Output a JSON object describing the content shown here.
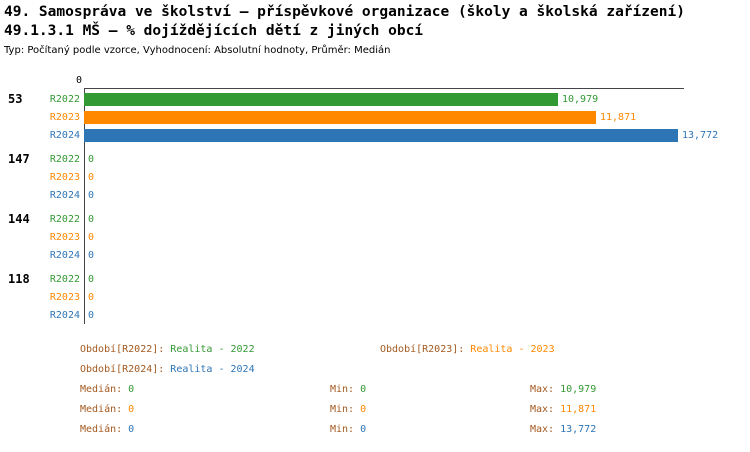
{
  "header": {
    "title_line1": "49. Samospráva ve školství – příspěvkové organizace (školy a školská zařízení)",
    "title_line2": "49.1.3.1 MŠ – % dojíždějících dětí z jiných obcí",
    "meta": "Typ: Počítaný podle vzorce, Vyhodnocení: Absolutní hodnoty, Průměr: Medián"
  },
  "chart_data": {
    "type": "bar",
    "orientation": "horizontal",
    "title": "49.1.3.1 MŠ – % dojíždějících dětí z jiných obcí",
    "axis": {
      "tick_zero": "0",
      "xmax": 13.772
    },
    "colors": {
      "R2022": "#339933",
      "R2023": "#FF8800",
      "R2024": "#2E75B6",
      "label": "#A3591F",
      "axis": "#444444"
    },
    "categories": [
      "53",
      "147",
      "144",
      "118"
    ],
    "series_order": [
      "R2022",
      "R2023",
      "R2024"
    ],
    "groups": [
      {
        "category": "53",
        "bars": [
          {
            "series": "R2022",
            "value": 10.979,
            "label": "10,979"
          },
          {
            "series": "R2023",
            "value": 11.871,
            "label": "11,871"
          },
          {
            "series": "R2024",
            "value": 13.772,
            "label": "13,772"
          }
        ]
      },
      {
        "category": "147",
        "bars": [
          {
            "series": "R2022",
            "value": 0,
            "label": "0"
          },
          {
            "series": "R2023",
            "value": 0,
            "label": "0"
          },
          {
            "series": "R2024",
            "value": 0,
            "label": "0"
          }
        ]
      },
      {
        "category": "144",
        "bars": [
          {
            "series": "R2022",
            "value": 0,
            "label": "0"
          },
          {
            "series": "R2023",
            "value": 0,
            "label": "0"
          },
          {
            "series": "R2024",
            "value": 0,
            "label": "0"
          }
        ]
      },
      {
        "category": "118",
        "bars": [
          {
            "series": "R2022",
            "value": 0,
            "label": "0"
          },
          {
            "series": "R2023",
            "value": 0,
            "label": "0"
          },
          {
            "series": "R2024",
            "value": 0,
            "label": "0"
          }
        ]
      }
    ]
  },
  "legend": {
    "items": [
      {
        "prefix": "Období[R2022]:",
        "text": "Realita - 2022",
        "series": "R2022"
      },
      {
        "prefix": "Období[R2023]:",
        "text": "Realita - 2023",
        "series": "R2023"
      },
      {
        "prefix": "Období[R2024]:",
        "text": "Realita - 2024",
        "series": "R2024"
      }
    ]
  },
  "stats": {
    "rows": [
      {
        "series": "R2022",
        "median_label": "Medián:",
        "median": "0",
        "min_label": "Min:",
        "min": "0",
        "max_label": "Max:",
        "max": "10,979"
      },
      {
        "series": "R2023",
        "median_label": "Medián:",
        "median": "0",
        "min_label": "Min:",
        "min": "0",
        "max_label": "Max:",
        "max": "11,871"
      },
      {
        "series": "R2024",
        "median_label": "Medián:",
        "median": "0",
        "min_label": "Min:",
        "min": "0",
        "max_label": "Max:",
        "max": "13,772"
      }
    ]
  }
}
